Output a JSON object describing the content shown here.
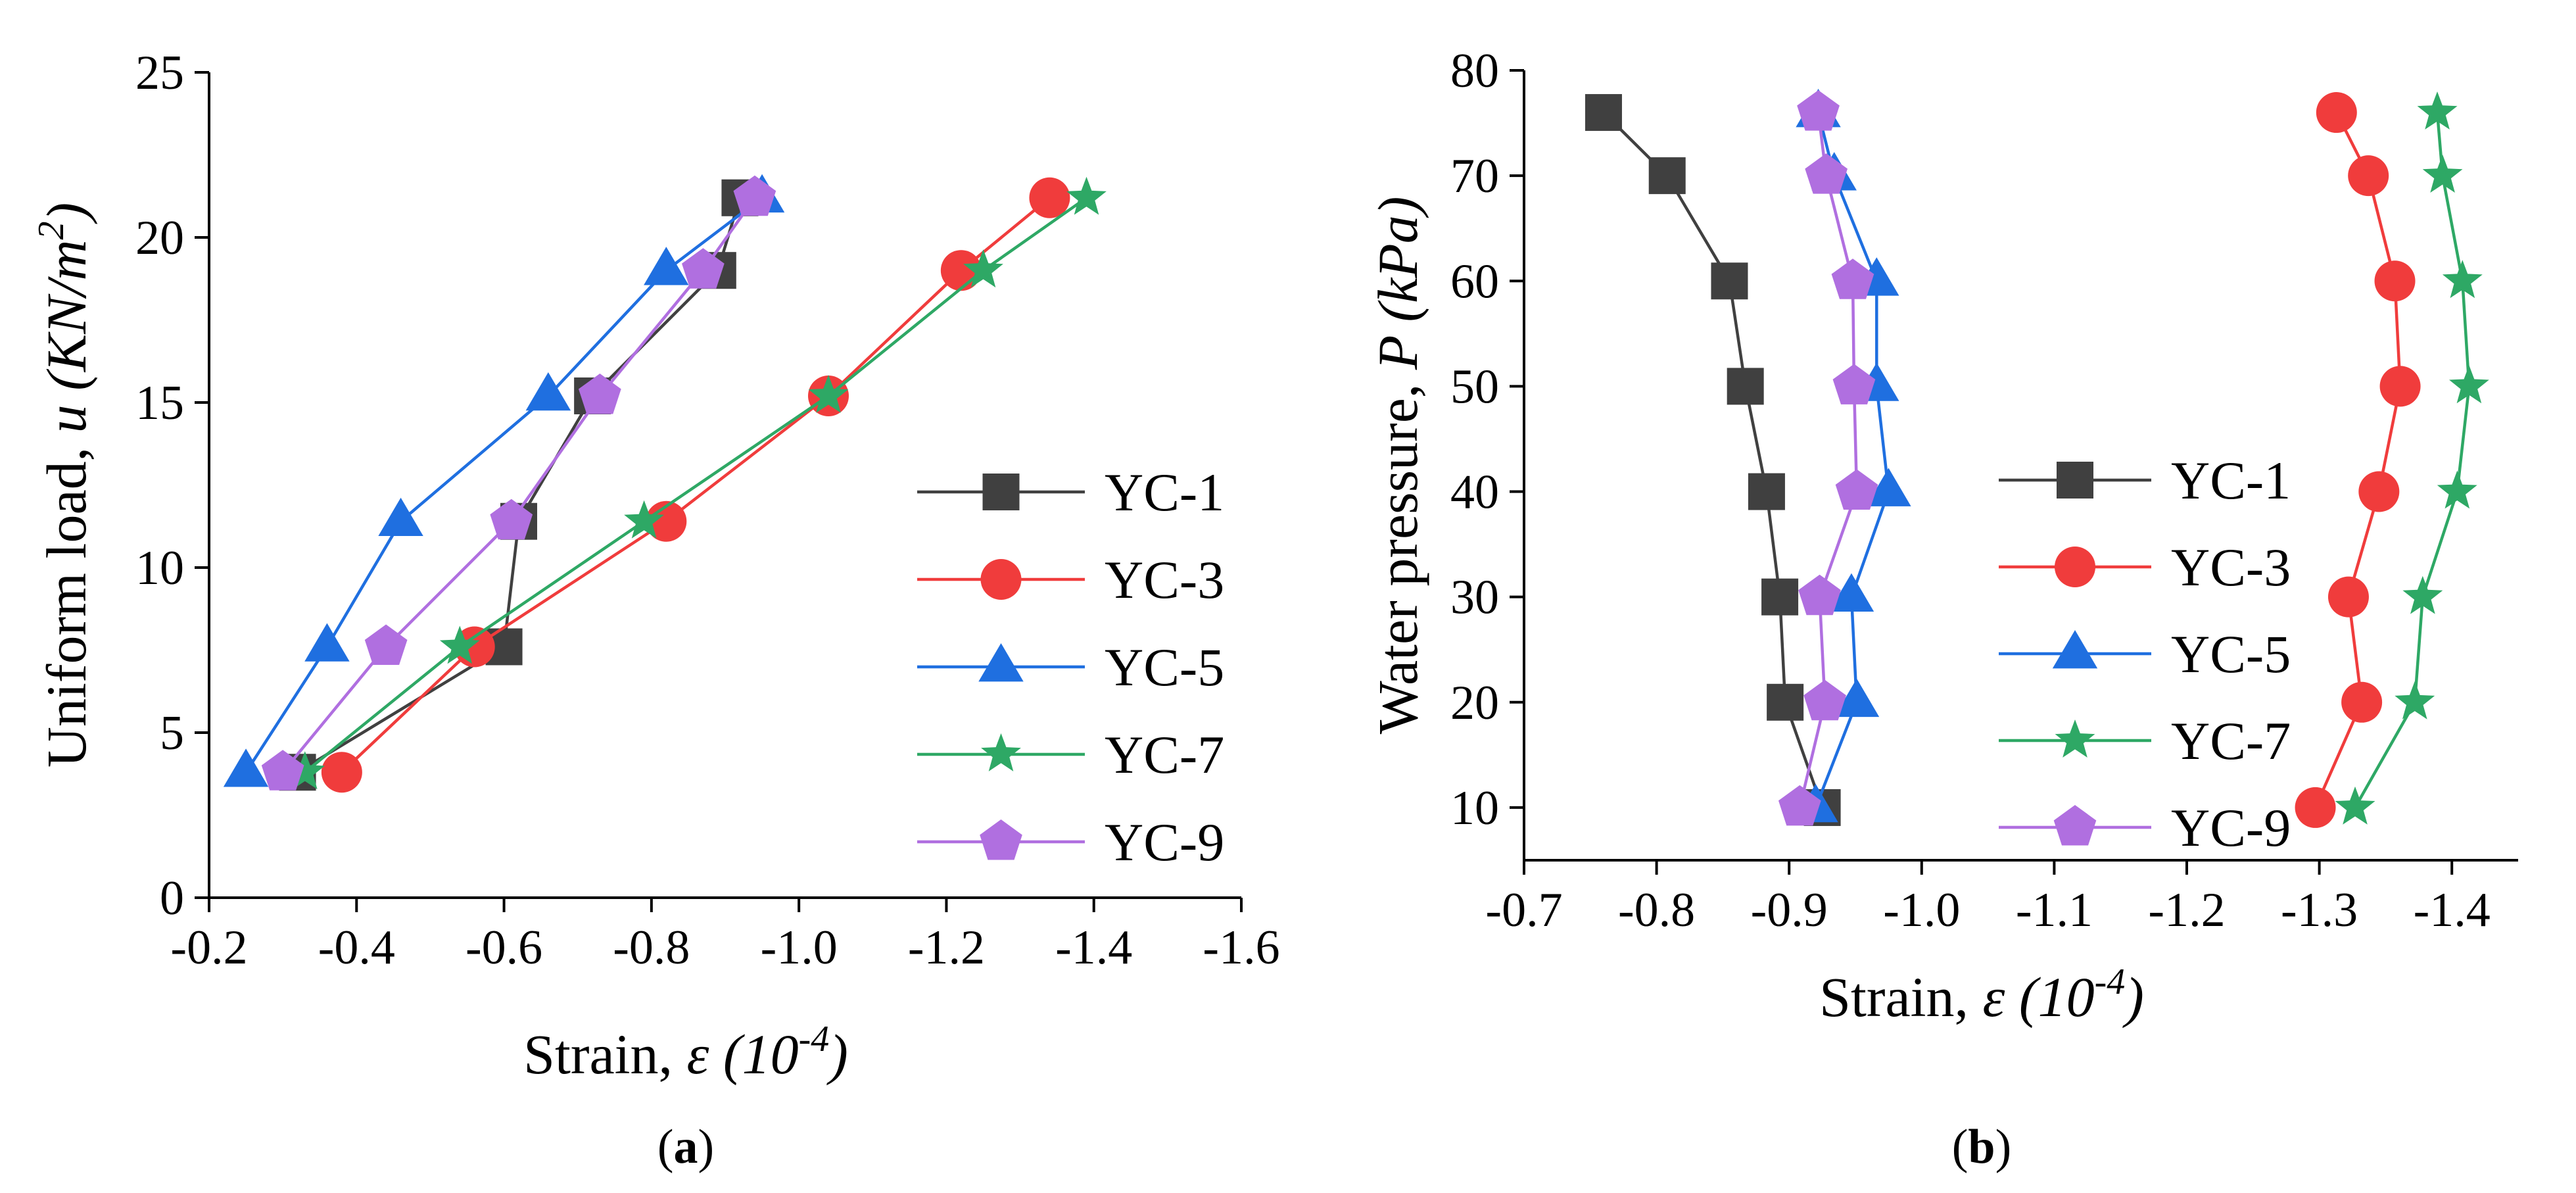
{
  "chart_data": [
    {
      "type": "line",
      "panel_label": "(a)",
      "panel_label_parts": [
        "(",
        "a",
        ")"
      ],
      "xlabel": "Strain, ε (10-4)",
      "xlabel_parts": {
        "prefix": "Strain, ",
        "italic": "ε (10",
        "sup": "-4",
        "suffix": ")"
      },
      "ylabel": "Uniform load, u (KN/m2)",
      "ylabel_parts": {
        "prefix": "Uniform load, ",
        "italic": "u (KN/m",
        "sup": "2",
        "suffix": ")"
      },
      "xlim": [
        -0.2,
        -1.6
      ],
      "ylim": [
        0,
        25
      ],
      "xticks": [
        -0.2,
        -0.4,
        -0.6,
        -0.8,
        -1.0,
        -1.2,
        -1.4,
        -1.6
      ],
      "xtick_labels": [
        "-0.2",
        "-0.4",
        "-0.6",
        "-0.8",
        "-1.0",
        "-1.2",
        "-1.4",
        "-1.6"
      ],
      "yticks": [
        0,
        5,
        10,
        15,
        20,
        25
      ],
      "ytick_labels": [
        "0",
        "5",
        "10",
        "15",
        "20",
        "25"
      ],
      "legend_position": "right",
      "series": [
        {
          "name": "YC-1",
          "color": "#404040",
          "marker": "square",
          "x": [
            -0.32,
            -0.6,
            -0.62,
            -0.72,
            -0.89,
            -0.92
          ],
          "y": [
            3.8,
            7.6,
            11.4,
            15.2,
            19.0,
            21.2
          ]
        },
        {
          "name": "YC-3",
          "color": "#f03c3c",
          "marker": "circle",
          "x": [
            -0.38,
            -0.56,
            -0.82,
            -1.04,
            -1.22,
            -1.34
          ],
          "y": [
            3.8,
            7.6,
            11.4,
            15.2,
            19.0,
            21.2
          ]
        },
        {
          "name": "YC-5",
          "color": "#1f6fe0",
          "marker": "triangle",
          "x": [
            -0.25,
            -0.36,
            -0.46,
            -0.66,
            -0.82,
            -0.95
          ],
          "y": [
            3.8,
            7.6,
            11.4,
            15.2,
            19.0,
            21.2
          ]
        },
        {
          "name": "YC-7",
          "color": "#2ea865",
          "marker": "star",
          "x": [
            -0.33,
            -0.54,
            -0.79,
            -1.04,
            -1.25,
            -1.39
          ],
          "y": [
            3.8,
            7.6,
            11.4,
            15.2,
            19.0,
            21.2
          ]
        },
        {
          "name": "YC-9",
          "color": "#b06fe0",
          "marker": "pentagon",
          "x": [
            -0.3,
            -0.44,
            -0.61,
            -0.73,
            -0.87,
            -0.94
          ],
          "y": [
            3.8,
            7.6,
            11.4,
            15.2,
            19.0,
            21.2
          ]
        }
      ]
    },
    {
      "type": "line",
      "panel_label": "(b)",
      "panel_label_parts": [
        "(",
        "b",
        ")"
      ],
      "xlabel": "Strain, ε (10-4)",
      "xlabel_parts": {
        "prefix": "Strain, ",
        "italic": "ε (10",
        "sup": "-4",
        "suffix": ")"
      },
      "ylabel": "Water pressure, P (kPa)",
      "ylabel_parts": {
        "prefix": "Water pressure, ",
        "italic": "P (kPa)",
        "sup": "",
        "suffix": ""
      },
      "xlim": [
        -0.7,
        -1.45
      ],
      "ylim": [
        5,
        80
      ],
      "xticks": [
        -0.7,
        -0.8,
        -0.9,
        -1.0,
        -1.1,
        -1.2,
        -1.3,
        -1.4
      ],
      "xtick_labels": [
        "-0.7",
        "-0.8",
        "-0.9",
        "-1.0",
        "-1.1",
        "-1.2",
        "-1.3",
        "-1.4"
      ],
      "yticks": [
        10,
        20,
        30,
        40,
        50,
        60,
        70,
        80
      ],
      "ytick_labels": [
        "10",
        "20",
        "30",
        "40",
        "50",
        "60",
        "70",
        "80"
      ],
      "legend_position": "center",
      "series": [
        {
          "name": "YC-1",
          "color": "#404040",
          "marker": "square",
          "x": [
            -0.925,
            -0.897,
            -0.893,
            -0.883,
            -0.867,
            -0.855,
            -0.808,
            -0.76
          ],
          "y": [
            10,
            20,
            30,
            40,
            50,
            60,
            70,
            76
          ]
        },
        {
          "name": "YC-3",
          "color": "#f03c3c",
          "marker": "circle",
          "x": [
            -1.297,
            -1.332,
            -1.322,
            -1.345,
            -1.361,
            -1.357,
            -1.337,
            -1.313
          ],
          "y": [
            10,
            20,
            30,
            40,
            50,
            60,
            70,
            76
          ]
        },
        {
          "name": "YC-5",
          "color": "#1f6fe0",
          "marker": "triangle",
          "x": [
            -0.92,
            -0.951,
            -0.947,
            -0.975,
            -0.966,
            -0.966,
            -0.934,
            -0.922
          ],
          "y": [
            10,
            20,
            30,
            40,
            50,
            60,
            70,
            76
          ]
        },
        {
          "name": "YC-7",
          "color": "#2ea865",
          "marker": "star",
          "x": [
            -1.327,
            -1.372,
            -1.378,
            -1.404,
            -1.413,
            -1.408,
            -1.393,
            -1.389
          ],
          "y": [
            10,
            20,
            30,
            40,
            50,
            60,
            70,
            76
          ]
        },
        {
          "name": "YC-9",
          "color": "#b06fe0",
          "marker": "pentagon",
          "x": [
            -0.908,
            -0.927,
            -0.923,
            -0.951,
            -0.949,
            -0.948,
            -0.928,
            -0.922
          ],
          "y": [
            10,
            20,
            30,
            40,
            50,
            60,
            70,
            76
          ]
        }
      ]
    }
  ]
}
